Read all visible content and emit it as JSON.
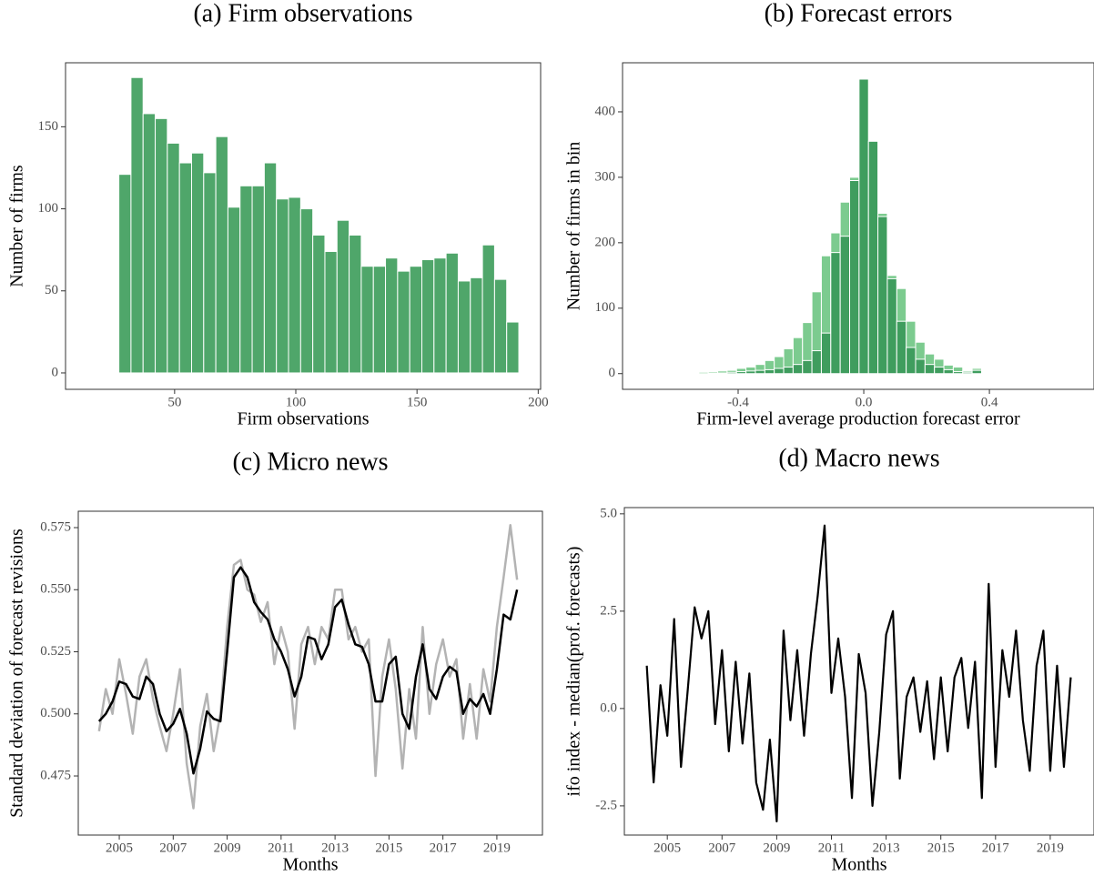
{
  "chart_data": [
    {
      "type": "histogram",
      "title": "(a) Firm observations",
      "x_label": "Firm observations",
      "y_label": "Number of firms",
      "bins": [
        27,
        32,
        37,
        42,
        47,
        52,
        57,
        62,
        67,
        72,
        77,
        82,
        87,
        92,
        97,
        102,
        107,
        112,
        117,
        122,
        127,
        132,
        137,
        142,
        147,
        152,
        157,
        162,
        167,
        172,
        177,
        182,
        187,
        192
      ],
      "values": [
        121,
        180,
        158,
        155,
        140,
        128,
        134,
        122,
        144,
        101,
        114,
        114,
        128,
        106,
        107,
        100,
        84,
        74,
        93,
        84,
        65,
        65,
        70,
        62,
        65,
        69,
        70,
        73,
        56,
        58,
        78,
        57,
        31
      ],
      "color": "#4fa66a",
      "xlim": [
        5,
        201
      ],
      "xticks": [
        50,
        100,
        150,
        200
      ],
      "ylim": [
        -10,
        189
      ],
      "yticks": [
        0,
        50,
        100,
        150
      ]
    },
    {
      "type": "histogram",
      "title": "(b) Forecast errors",
      "x_label": "Firm-level average production forecast error",
      "y_label": "Number of firms in bin",
      "bins": [
        -0.615,
        -0.585,
        -0.555,
        -0.525,
        -0.495,
        -0.465,
        -0.435,
        -0.405,
        -0.375,
        -0.345,
        -0.315,
        -0.285,
        -0.255,
        -0.225,
        -0.195,
        -0.165,
        -0.135,
        -0.105,
        -0.075,
        -0.045,
        -0.015,
        0.015,
        0.045,
        0.075,
        0.105,
        0.135,
        0.165,
        0.195,
        0.225,
        0.255,
        0.285,
        0.315,
        0.345,
        0.375,
        0.405,
        0.435
      ],
      "series": [
        {
          "color": "#7ccb8f",
          "values": [
            1,
            1,
            1,
            2,
            3,
            4,
            5,
            8,
            10,
            14,
            20,
            26,
            38,
            55,
            78,
            125,
            180,
            215,
            262,
            300,
            430,
            340,
            245,
            150,
            130,
            80,
            48,
            30,
            22,
            13,
            10,
            4,
            8,
            1,
            1
          ]
        },
        {
          "color": "#3f9d5e",
          "values": [
            0,
            0,
            0,
            0,
            1,
            1,
            2,
            3,
            4,
            5,
            6,
            8,
            10,
            14,
            20,
            35,
            62,
            185,
            210,
            295,
            450,
            355,
            240,
            145,
            80,
            40,
            22,
            14,
            10,
            6,
            3,
            2,
            5,
            0,
            0
          ]
        }
      ],
      "xlim": [
        -0.768,
        0.733
      ],
      "xticks": [
        -0.4,
        {
          "value": 0,
          "label": "0.0"
        },
        0.4
      ],
      "ylim": [
        -24,
        475
      ],
      "yticks": [
        0,
        100,
        200,
        300,
        400
      ]
    },
    {
      "type": "line",
      "title": "(c) Micro news",
      "x_label": "Months",
      "y_label": "Standard deviation of forecast revisions",
      "x": [
        2004.25,
        2004.5,
        2004.75,
        2005,
        2005.25,
        2005.5,
        2005.75,
        2006,
        2006.25,
        2006.5,
        2006.75,
        2007,
        2007.25,
        2007.5,
        2007.75,
        2008,
        2008.25,
        2008.5,
        2008.75,
        2009,
        2009.25,
        2009.5,
        2009.75,
        2010,
        2010.25,
        2010.5,
        2010.75,
        2011,
        2011.25,
        2011.5,
        2011.75,
        2012,
        2012.25,
        2012.5,
        2012.75,
        2013,
        2013.25,
        2013.5,
        2013.75,
        2014,
        2014.25,
        2014.5,
        2014.75,
        2015,
        2015.25,
        2015.5,
        2015.75,
        2016,
        2016.25,
        2016.5,
        2016.75,
        2017,
        2017.25,
        2017.5,
        2017.75,
        2018,
        2018.25,
        2018.5,
        2018.75,
        2019,
        2019.25,
        2019.5,
        2019.75
      ],
      "series": [
        {
          "color": "#b3b3b3",
          "values": [
            0.493,
            0.51,
            0.5,
            0.522,
            0.508,
            0.492,
            0.515,
            0.522,
            0.506,
            0.495,
            0.485,
            0.5,
            0.518,
            0.48,
            0.462,
            0.495,
            0.508,
            0.485,
            0.5,
            0.535,
            0.56,
            0.562,
            0.55,
            0.548,
            0.537,
            0.545,
            0.52,
            0.535,
            0.525,
            0.494,
            0.528,
            0.535,
            0.52,
            0.535,
            0.53,
            0.55,
            0.55,
            0.53,
            0.535,
            0.525,
            0.53,
            0.475,
            0.515,
            0.53,
            0.51,
            0.478,
            0.51,
            0.49,
            0.535,
            0.5,
            0.52,
            0.53,
            0.515,
            0.522,
            0.49,
            0.512,
            0.49,
            0.518,
            0.505,
            0.535,
            0.555,
            0.576,
            0.554
          ]
        },
        {
          "color": "#000000",
          "values": [
            0.497,
            0.5,
            0.505,
            0.513,
            0.512,
            0.507,
            0.506,
            0.515,
            0.512,
            0.5,
            0.493,
            0.496,
            0.502,
            0.492,
            0.476,
            0.486,
            0.501,
            0.498,
            0.497,
            0.525,
            0.555,
            0.559,
            0.555,
            0.545,
            0.541,
            0.538,
            0.53,
            0.525,
            0.518,
            0.507,
            0.515,
            0.531,
            0.53,
            0.522,
            0.528,
            0.543,
            0.546,
            0.536,
            0.528,
            0.527,
            0.52,
            0.505,
            0.505,
            0.52,
            0.523,
            0.5,
            0.494,
            0.515,
            0.528,
            0.51,
            0.506,
            0.515,
            0.519,
            0.517,
            0.5,
            0.506,
            0.503,
            0.508,
            0.5,
            0.518,
            0.54,
            0.538,
            0.55
          ]
        }
      ],
      "xlim": [
        2003.48,
        2020.69
      ],
      "xticks": [
        2005,
        2007,
        2009,
        2011,
        2013,
        2015,
        2017,
        2019
      ],
      "ylim": [
        0.4512,
        0.5816
      ],
      "yticks": [
        0.475,
        {
          "value": 0.5,
          "label": "0.500"
        },
        0.525,
        {
          "value": 0.55,
          "label": "0.550"
        },
        0.575
      ]
    },
    {
      "type": "line",
      "title": "(d) Macro news",
      "x_label": "Months",
      "y_label": "ifo index - median(prof. forecasts)",
      "x": [
        2004.25,
        2004.5,
        2004.75,
        2005,
        2005.25,
        2005.5,
        2005.75,
        2006,
        2006.25,
        2006.5,
        2006.75,
        2007,
        2007.25,
        2007.5,
        2007.75,
        2008,
        2008.25,
        2008.5,
        2008.75,
        2009,
        2009.25,
        2009.5,
        2009.75,
        2010,
        2010.25,
        2010.5,
        2010.75,
        2011,
        2011.25,
        2011.5,
        2011.75,
        2012,
        2012.25,
        2012.5,
        2012.75,
        2013,
        2013.25,
        2013.5,
        2013.75,
        2014,
        2014.25,
        2014.5,
        2014.75,
        2015,
        2015.25,
        2015.5,
        2015.75,
        2016,
        2016.25,
        2016.5,
        2016.75,
        2017,
        2017.25,
        2017.5,
        2017.75,
        2018,
        2018.25,
        2018.5,
        2018.75,
        2019,
        2019.25,
        2019.5,
        2019.75
      ],
      "series": [
        {
          "color": "#000000",
          "values": [
            1.1,
            -1.9,
            0.6,
            -0.7,
            2.3,
            -1.5,
            0.5,
            2.6,
            1.8,
            2.5,
            -0.4,
            1.5,
            -1.1,
            1.2,
            -0.9,
            0.9,
            -1.9,
            -2.6,
            -0.8,
            -2.9,
            2.0,
            -0.3,
            1.5,
            -0.7,
            1.4,
            2.9,
            4.7,
            0.4,
            1.8,
            0.3,
            -2.3,
            1.4,
            0.4,
            -2.5,
            -0.6,
            1.9,
            2.5,
            -1.8,
            0.3,
            0.8,
            -0.6,
            0.7,
            -1.3,
            0.8,
            -1.1,
            0.8,
            1.3,
            -0.5,
            1.2,
            -2.3,
            3.2,
            -1.5,
            1.5,
            0.3,
            2.0,
            -0.3,
            -1.6,
            1.1,
            2.0,
            -1.6,
            1.1,
            -1.5,
            0.8
          ]
        }
      ],
      "xlim": [
        2003.43,
        2020.6
      ],
      "xticks": [
        2005,
        2007,
        2009,
        2011,
        2013,
        2015,
        2017,
        2019
      ],
      "ylim": [
        -3.25,
        5.16
      ],
      "yticks": [
        {
          "value": 5,
          "label": "5.0"
        },
        2.5,
        {
          "value": 0,
          "label": "0.0"
        },
        -2.5
      ]
    }
  ]
}
